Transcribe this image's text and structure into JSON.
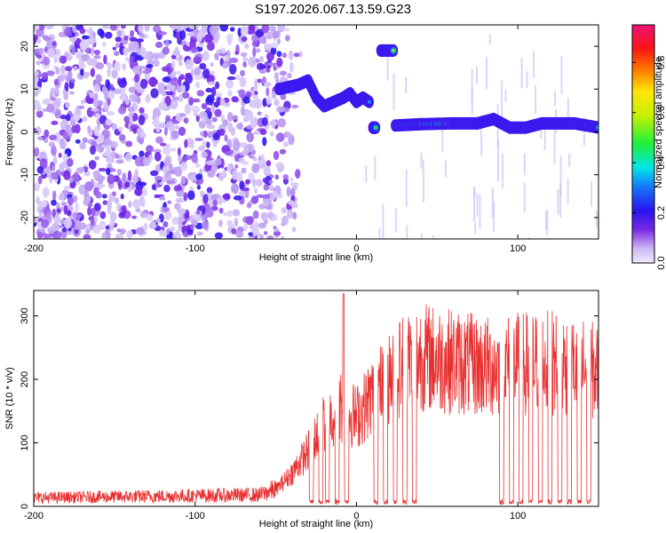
{
  "title": "S197.2026.067.13.59.G23",
  "chart_data": [
    {
      "type": "heatmap",
      "title": "S197.2026.067.13.59.G23",
      "xlabel": "Height of straight line (km)",
      "ylabel": "Frequency (Hz)",
      "xlim": [
        -200,
        150
      ],
      "ylim": [
        -25,
        25
      ],
      "xticks": [
        -200,
        -100,
        0,
        100
      ],
      "yticks": [
        -20,
        -10,
        0,
        10,
        20
      ],
      "colorbar": {
        "label": "Normalized spectral amplitude",
        "range": [
          0.0,
          0.95
        ],
        "ticks": [
          "0.0",
          "0.2",
          "0.4",
          "0.6",
          "0.8"
        ],
        "tick_values": [
          0.0,
          0.2,
          0.4,
          0.6,
          0.8
        ]
      },
      "noise_region": {
        "x": [
          -200,
          -48
        ],
        "freq": [
          -25,
          25
        ],
        "amplitude": 0.15
      },
      "tracks": [
        {
          "x": [
            -48,
            -36,
            -30,
            -25,
            -20,
            -14,
            -8,
            -4,
            0,
            4,
            8
          ],
          "freq": [
            10,
            11,
            12,
            8,
            6,
            7,
            8,
            9,
            7,
            8,
            7
          ],
          "amplitude": 0.5
        },
        {
          "x": [
            10,
            12
          ],
          "freq": [
            1,
            1
          ],
          "amplitude": 0.6
        },
        {
          "x": [
            15,
            23
          ],
          "freq": [
            19,
            19
          ],
          "amplitude": 0.55
        },
        {
          "x": [
            24,
            40,
            60,
            75,
            85,
            95,
            105,
            115,
            125,
            135,
            150
          ],
          "freq": [
            1.5,
            1.8,
            2,
            2,
            3,
            1,
            1,
            2,
            2,
            2,
            1
          ],
          "amplitude": 0.7
        }
      ],
      "gaps": [
        [
          -48,
          -40
        ],
        [
          13,
          15
        ],
        [
          24,
          150
        ]
      ]
    },
    {
      "type": "line",
      "xlabel": "Height of straight line (km)",
      "ylabel": "SNR (10 * v/v)",
      "xlim": [
        -200,
        150
      ],
      "ylim": [
        0,
        340
      ],
      "xticks": [
        -200,
        -100,
        0,
        100
      ],
      "yticks": [
        0,
        100,
        200,
        300
      ],
      "series": [
        {
          "name": "SNR",
          "color": "#e83030",
          "envelope_x": [
            -200,
            -60,
            -50,
            -40,
            -30,
            -20,
            -10,
            0,
            10,
            20,
            30,
            40,
            60,
            80,
            100,
            120,
            140,
            150
          ],
          "envelope_y": [
            15,
            20,
            30,
            60,
            100,
            150,
            180,
            160,
            200,
            230,
            260,
            270,
            260,
            250,
            255,
            260,
            250,
            240
          ],
          "dropouts_x": [
            -28,
            -22,
            -18,
            -12,
            -6,
            12,
            18,
            24,
            30,
            36,
            90,
            96,
            102,
            108,
            114,
            120,
            126,
            132,
            138,
            144
          ]
        }
      ]
    }
  ]
}
